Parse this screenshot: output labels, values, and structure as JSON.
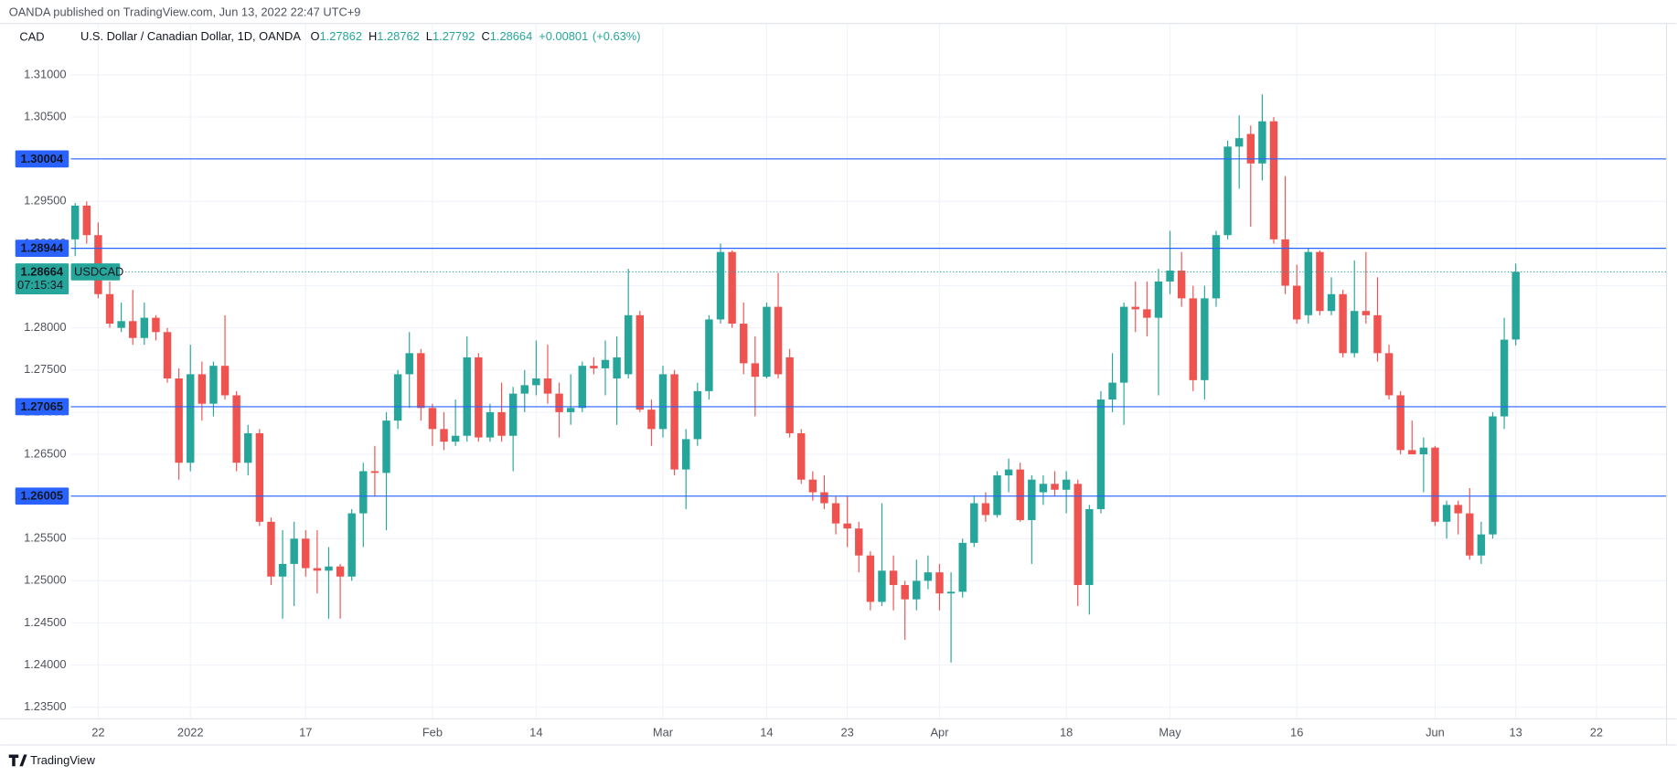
{
  "header": {
    "published": "OANDA published on TradingView.com, Jun 13, 2022 22:47 UTC+9",
    "currency": "CAD",
    "symbol_desc": "U.S. Dollar / Canadian Dollar, 1D, OANDA",
    "ohlc_letters": [
      "O",
      "H",
      "L",
      "C"
    ],
    "change": "+0.00801",
    "change_pct": "(+0.63%)",
    "ticker": "USDCAD",
    "countdown": "07:15:34",
    "footer": "TradingView"
  },
  "chart_data": {
    "type": "candlestick",
    "categories": [
      null,
      null,
      "22",
      null,
      null,
      null,
      null,
      null,
      null,
      null,
      "2022",
      null,
      null,
      null,
      null,
      null,
      null,
      null,
      null,
      null,
      "17",
      null,
      null,
      null,
      null,
      null,
      null,
      null,
      null,
      null,
      null,
      "Feb",
      null,
      null,
      null,
      null,
      null,
      null,
      null,
      null,
      "14",
      null,
      null,
      null,
      null,
      null,
      null,
      null,
      null,
      null,
      null,
      "Mar",
      null,
      null,
      null,
      null,
      null,
      null,
      null,
      null,
      "14",
      null,
      null,
      null,
      null,
      null,
      null,
      "23",
      null,
      null,
      null,
      null,
      null,
      null,
      null,
      "Apr",
      null,
      null,
      null,
      null,
      null,
      null,
      null,
      null,
      null,
      null,
      "18",
      null,
      null,
      null,
      null,
      null,
      null,
      null,
      null,
      "May",
      null,
      null,
      null,
      null,
      null,
      null,
      null,
      null,
      null,
      null,
      "16",
      null,
      null,
      null,
      null,
      null,
      null,
      null,
      null,
      null,
      null,
      null,
      "Jun",
      null,
      null,
      null,
      null,
      null,
      null,
      "13",
      null,
      null,
      null,
      null,
      null,
      null,
      "22",
      null,
      null,
      null,
      null,
      null,
      null
    ],
    "open": [
      1.2905,
      1.2945,
      1.291,
      1.284,
      1.28,
      1.2808,
      1.2788,
      1.2812,
      1.2795,
      1.274,
      1.264,
      1.2745,
      1.271,
      1.2755,
      1.272,
      1.264,
      1.2675,
      1.257,
      1.2505,
      1.252,
      1.255,
      1.2515,
      1.2512,
      1.2517,
      1.2505,
      1.258,
      1.263,
      1.2628,
      1.269,
      1.2745,
      1.277,
      1.2705,
      1.268,
      1.2665,
      1.2672,
      1.2765,
      1.267,
      1.27,
      1.2672,
      1.2722,
      1.2732,
      1.274,
      1.2722,
      1.27,
      1.2705,
      1.2755,
      1.2752,
      1.274,
      1.2745,
      1.2815,
      1.2703,
      1.268,
      1.2745,
      1.2632,
      1.2668,
      1.2725,
      1.281,
      1.289,
      1.2805,
      1.2758,
      1.2742,
      1.2825,
      1.2765,
      1.2675,
      1.262,
      1.2605,
      1.2592,
      1.2568,
      1.2562,
      1.253,
      1.2475,
      1.2512,
      1.2495,
      1.2478,
      1.25,
      1.251,
      1.2485,
      1.2487,
      1.2545,
      1.2592,
      1.2578,
      1.2625,
      1.2632,
      1.2572,
      1.2605,
      1.2615,
      1.2608,
      1.2615,
      1.2495,
      1.2585,
      1.2715,
      1.2735,
      1.2825,
      1.2822,
      1.2812,
      1.2855,
      1.2868,
      1.2835,
      1.2738,
      1.2835,
      1.291,
      1.3015,
      1.303,
      1.2995,
      1.3045,
      1.2905,
      1.285,
      1.2815,
      1.289,
      1.282,
      1.284,
      1.277,
      1.282,
      1.2815,
      1.277,
      1.272,
      1.2655,
      1.265,
      1.2658,
      1.257,
      1.259,
      1.258,
      1.253,
      1.2555,
      1.2695,
      1.27862,
      null,
      null,
      null,
      null,
      null,
      null,
      null,
      null,
      null,
      null,
      null,
      null,
      null
    ],
    "high": [
      1.2948,
      1.295,
      1.2925,
      1.2855,
      1.283,
      1.2845,
      1.283,
      1.2815,
      1.28,
      1.2752,
      1.278,
      1.276,
      1.276,
      1.2815,
      1.2725,
      1.2685,
      1.268,
      1.2575,
      1.256,
      1.257,
      1.256,
      1.256,
      1.254,
      1.252,
      1.2585,
      1.264,
      1.266,
      1.27,
      1.275,
      1.2795,
      1.2775,
      1.271,
      1.27,
      1.2715,
      1.279,
      1.277,
      1.271,
      1.2735,
      1.273,
      1.275,
      1.2785,
      1.278,
      1.2735,
      1.2745,
      1.276,
      1.2765,
      1.2785,
      1.279,
      1.287,
      1.282,
      1.2715,
      1.2755,
      1.275,
      1.268,
      1.2735,
      1.2815,
      1.29,
      1.2892,
      1.283,
      1.279,
      1.283,
      1.2865,
      1.2775,
      1.268,
      1.263,
      1.2625,
      1.26,
      1.26,
      1.257,
      1.2535,
      1.2592,
      1.253,
      1.25,
      1.2525,
      1.253,
      1.252,
      1.251,
      1.255,
      1.26,
      1.2605,
      1.263,
      1.2645,
      1.264,
      1.2625,
      1.2625,
      1.263,
      1.263,
      1.262,
      1.259,
      1.2725,
      1.277,
      1.283,
      1.2855,
      1.2855,
      1.287,
      1.2915,
      1.289,
      1.285,
      1.285,
      1.2915,
      1.3022,
      1.3052,
      1.304,
      1.3077,
      1.305,
      1.298,
      1.2875,
      1.2895,
      1.2892,
      1.286,
      1.2845,
      1.288,
      1.289,
      1.286,
      1.278,
      1.2725,
      1.269,
      1.267,
      1.266,
      1.2595,
      1.2595,
      1.261,
      1.257,
      1.27,
      1.2812,
      1.28762,
      null,
      null,
      null,
      null,
      null,
      null,
      null,
      null,
      null,
      null,
      null,
      null,
      null
    ],
    "low": [
      1.2885,
      1.29,
      1.2835,
      1.28,
      1.2795,
      1.278,
      1.278,
      1.2785,
      1.2735,
      1.262,
      1.263,
      1.269,
      1.2695,
      1.2715,
      1.263,
      1.2625,
      1.2565,
      1.2495,
      1.2455,
      1.247,
      1.2505,
      1.2485,
      1.2455,
      1.2455,
      1.25,
      1.254,
      1.26,
      1.256,
      1.268,
      1.2705,
      1.269,
      1.266,
      1.2655,
      1.266,
      1.2665,
      1.2665,
      1.2665,
      1.2665,
      1.263,
      1.27,
      1.272,
      1.271,
      1.267,
      1.2685,
      1.27,
      1.2745,
      1.272,
      1.2685,
      1.274,
      1.27,
      1.266,
      1.267,
      1.2625,
      1.2585,
      1.266,
      1.2715,
      1.2805,
      1.28,
      1.2745,
      1.2695,
      1.274,
      1.274,
      1.267,
      1.2615,
      1.2595,
      1.2585,
      1.2555,
      1.254,
      1.251,
      1.2465,
      1.247,
      1.2465,
      1.243,
      1.2465,
      1.249,
      1.2465,
      1.2403,
      1.248,
      1.254,
      1.257,
      1.2575,
      1.2605,
      1.257,
      1.252,
      1.259,
      1.26,
      1.258,
      1.247,
      1.246,
      1.258,
      1.27,
      1.2685,
      1.2795,
      1.279,
      1.272,
      1.284,
      1.2825,
      1.2725,
      1.2715,
      1.2825,
      1.2905,
      1.2965,
      1.292,
      1.2975,
      1.29,
      1.284,
      1.2805,
      1.2805,
      1.2815,
      1.2815,
      1.2765,
      1.2765,
      1.2805,
      1.276,
      1.2715,
      1.265,
      1.265,
      1.2605,
      1.2565,
      1.255,
      1.2555,
      1.2525,
      1.252,
      1.255,
      1.268,
      1.27792,
      null,
      null,
      null,
      null,
      null,
      null,
      null,
      null,
      null,
      null,
      null,
      null,
      null
    ],
    "close": [
      1.2945,
      1.291,
      1.284,
      1.2805,
      1.2808,
      1.2788,
      1.2812,
      1.2795,
      1.274,
      1.264,
      1.2745,
      1.271,
      1.2755,
      1.272,
      1.264,
      1.2675,
      1.257,
      1.2505,
      1.252,
      1.255,
      1.2515,
      1.2512,
      1.2517,
      1.2505,
      1.258,
      1.263,
      1.2628,
      1.269,
      1.2745,
      1.277,
      1.2705,
      1.268,
      1.2665,
      1.2672,
      1.2765,
      1.267,
      1.27,
      1.2672,
      1.2722,
      1.2732,
      1.274,
      1.2722,
      1.27,
      1.2705,
      1.2755,
      1.2752,
      1.2762,
      1.2765,
      1.2815,
      1.2703,
      1.268,
      1.2745,
      1.2632,
      1.2668,
      1.2725,
      1.281,
      1.289,
      1.2805,
      1.2758,
      1.2742,
      1.2825,
      1.2745,
      1.2675,
      1.262,
      1.2605,
      1.2592,
      1.2568,
      1.2562,
      1.253,
      1.2475,
      1.2512,
      1.2495,
      1.2478,
      1.25,
      1.251,
      1.2485,
      1.2487,
      1.2545,
      1.2592,
      1.2578,
      1.2625,
      1.2632,
      1.2572,
      1.262,
      1.2615,
      1.2608,
      1.262,
      1.2495,
      1.2585,
      1.2715,
      1.2735,
      1.2825,
      1.2822,
      1.2812,
      1.2855,
      1.2868,
      1.2835,
      1.2738,
      1.2835,
      1.291,
      1.3015,
      1.3025,
      1.2995,
      1.3045,
      1.2905,
      1.285,
      1.281,
      1.289,
      1.282,
      1.284,
      1.277,
      1.282,
      1.2815,
      1.277,
      1.272,
      1.2655,
      1.265,
      1.2658,
      1.257,
      1.259,
      1.258,
      1.253,
      1.2555,
      1.2695,
      1.2786,
      1.28664,
      null,
      null,
      null,
      null,
      null,
      null,
      null,
      null,
      null,
      null,
      null,
      null,
      null
    ],
    "up_color": "#26a69a",
    "down_color": "#ef5350",
    "ylim": [
      1.2337,
      1.3161
    ],
    "yticks": [
      {
        "value": 1.235,
        "label": "1.23500"
      },
      {
        "value": 1.24,
        "label": "1.24000"
      },
      {
        "value": 1.245,
        "label": "1.24500"
      },
      {
        "value": 1.25,
        "label": "1.25000"
      },
      {
        "value": 1.255,
        "label": "1.25500"
      },
      {
        "value": 1.26,
        "label": "1.26000"
      },
      {
        "value": 1.265,
        "label": "1.26500"
      },
      {
        "value": 1.27,
        "label": "1.27000"
      },
      {
        "value": 1.275,
        "label": "1.27500"
      },
      {
        "value": 1.28,
        "label": "1.28000"
      },
      {
        "value": 1.285,
        "label": "1.28500"
      },
      {
        "value": 1.29,
        "label": "1.29000"
      },
      {
        "value": 1.295,
        "label": "1.29500"
      },
      {
        "value": 1.3,
        "label": "1.30000"
      },
      {
        "value": 1.305,
        "label": "1.30500"
      },
      {
        "value": 1.31,
        "label": "1.31000"
      }
    ],
    "grid": true,
    "hlines": [
      {
        "value": 1.30004,
        "color": "#2962ff"
      },
      {
        "value": 1.28944,
        "color": "#2962ff"
      },
      {
        "value": 1.27065,
        "color": "#2962ff"
      },
      {
        "value": 1.26005,
        "color": "#2962ff"
      }
    ]
  }
}
